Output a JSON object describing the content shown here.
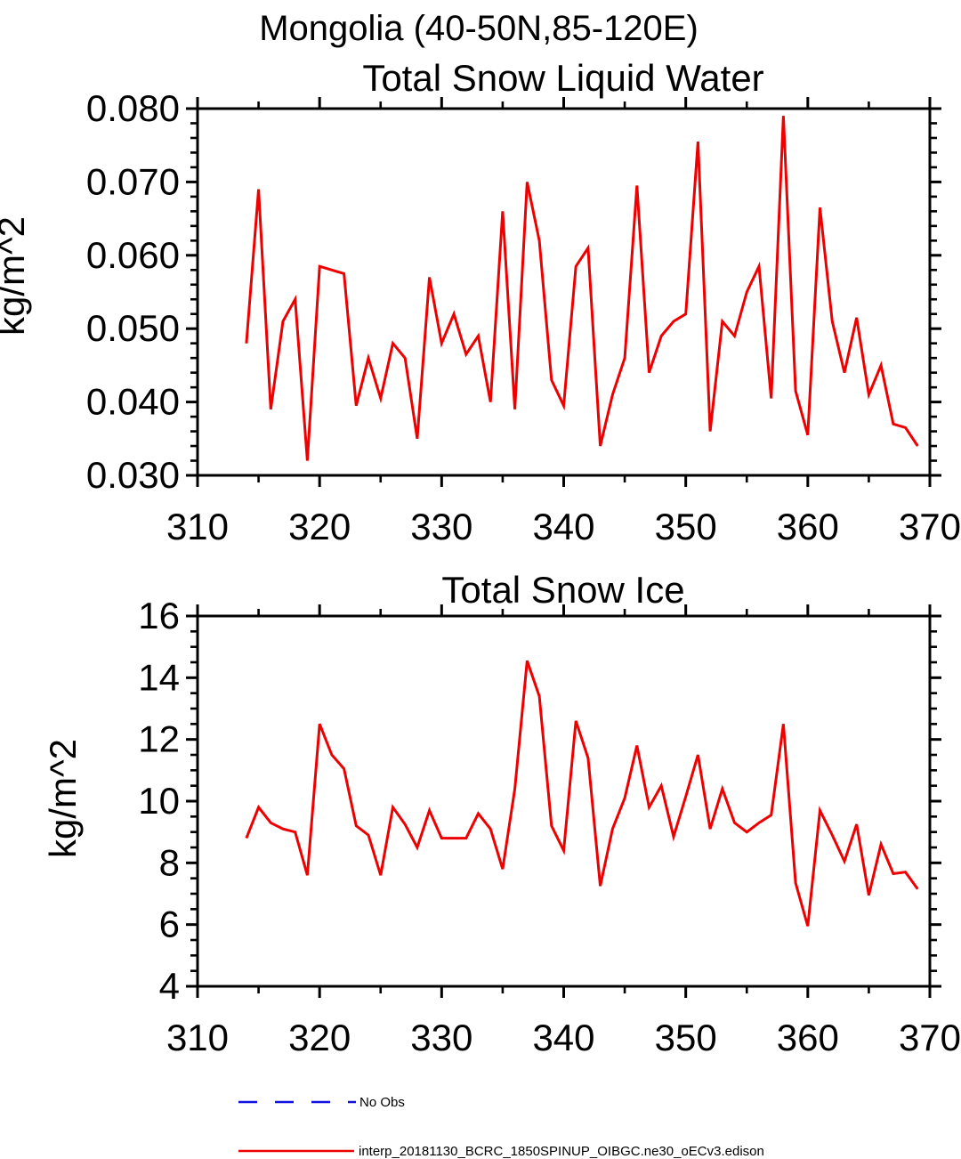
{
  "header": {
    "title": "Mongolia (40-50N,85-120E)"
  },
  "colors": {
    "series_red": "#ee0000",
    "no_obs_blue": "#1111dd",
    "axis_black": "#000000"
  },
  "legend": [
    {
      "label": "No Obs",
      "style": "dashed",
      "color": "#1111dd"
    },
    {
      "label": "interp_20181130_BCRC_1850SPINUP_OIBGC.ne30_oECv3.edison",
      "style": "solid",
      "color": "#ee0000"
    }
  ],
  "chart_data": [
    {
      "type": "line",
      "title": "Total Snow Liquid Water",
      "ylabel": "kg/m^2",
      "xlabel": "",
      "xlim": [
        310,
        370
      ],
      "ylim": [
        0.03,
        0.08
      ],
      "grid": false,
      "xtick_vals": [
        310,
        320,
        330,
        340,
        350,
        360,
        370
      ],
      "xtick_labels": [
        "310",
        "320",
        "330",
        "340",
        "350",
        "360",
        "370"
      ],
      "xminor_step": 5,
      "ytick_vals": [
        0.03,
        0.04,
        0.05,
        0.06,
        0.07,
        0.08
      ],
      "ytick_labels": [
        "0.030",
        "0.040",
        "0.050",
        "0.060",
        "0.070",
        "0.080"
      ],
      "yminor_step": 0.002,
      "series": [
        {
          "name": "interp_20181130_BCRC_1850SPINUP_OIBGC.ne30_oECv3.edison",
          "x_start": 314,
          "x_step": 1,
          "values": [
            0.048,
            0.069,
            0.039,
            0.051,
            0.054,
            0.032,
            0.0585,
            0.058,
            0.0575,
            0.0395,
            0.046,
            0.0405,
            0.048,
            0.046,
            0.035,
            0.057,
            0.048,
            0.052,
            0.0465,
            0.049,
            0.04,
            0.066,
            0.039,
            0.07,
            0.062,
            0.043,
            0.0395,
            0.0585,
            0.061,
            0.034,
            0.041,
            0.046,
            0.0695,
            0.044,
            0.049,
            0.051,
            0.052,
            0.0755,
            0.036,
            0.051,
            0.049,
            0.055,
            0.0585,
            0.0405,
            0.079,
            0.0415,
            0.0355,
            0.0665,
            0.051,
            0.044,
            0.0515,
            0.041,
            0.045,
            0.037,
            0.0365,
            0.034
          ]
        }
      ]
    },
    {
      "type": "line",
      "title": "Total Snow Ice",
      "ylabel": "kg/m^2",
      "xlabel": "",
      "xlim": [
        310,
        370
      ],
      "ylim": [
        4,
        16
      ],
      "grid": false,
      "xtick_vals": [
        310,
        320,
        330,
        340,
        350,
        360,
        370
      ],
      "xtick_labels": [
        "310",
        "320",
        "330",
        "340",
        "350",
        "360",
        "370"
      ],
      "xminor_step": 5,
      "ytick_vals": [
        4,
        6,
        8,
        10,
        12,
        14,
        16
      ],
      "ytick_labels": [
        "4",
        "6",
        "8",
        "10",
        "12",
        "14",
        "16"
      ],
      "yminor_step": 0.5,
      "series": [
        {
          "name": "interp_20181130_BCRC_1850SPINUP_OIBGC.ne30_oECv3.edison",
          "x_start": 314,
          "x_step": 1,
          "values": [
            8.8,
            9.8,
            9.3,
            9.1,
            9.0,
            7.6,
            12.5,
            11.5,
            11.05,
            9.2,
            8.9,
            7.6,
            9.8,
            9.25,
            8.5,
            9.7,
            8.8,
            8.8,
            8.8,
            9.6,
            9.1,
            7.8,
            10.4,
            14.55,
            13.4,
            9.2,
            8.4,
            12.6,
            11.4,
            7.25,
            9.1,
            10.1,
            11.8,
            9.8,
            10.5,
            8.85,
            10.15,
            11.5,
            9.1,
            10.4,
            9.3,
            9.0,
            9.3,
            9.55,
            12.5,
            7.35,
            5.95,
            9.7,
            8.9,
            8.05,
            9.25,
            6.95,
            8.6,
            7.65,
            7.7,
            7.15
          ]
        }
      ]
    }
  ]
}
